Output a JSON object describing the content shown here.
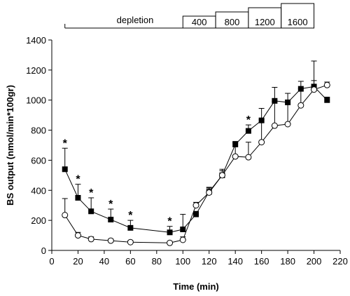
{
  "chart_data": {
    "type": "line",
    "xlabel": "Time (min)",
    "ylabel": "BS output (nmol/min*100gr)",
    "xlim": [
      0,
      220
    ],
    "ylim": [
      0,
      1400
    ],
    "xticks": [
      0,
      20,
      40,
      60,
      80,
      100,
      120,
      140,
      160,
      180,
      200,
      220
    ],
    "yticks": [
      0,
      200,
      400,
      600,
      800,
      1000,
      1200,
      1400
    ],
    "grid": false,
    "phases": [
      {
        "label": "depletion",
        "start": 10,
        "end": 100
      },
      {
        "label": "400",
        "start": 100,
        "end": 125
      },
      {
        "label": "800",
        "start": 125,
        "end": 150
      },
      {
        "label": "1200",
        "start": 150,
        "end": 175
      },
      {
        "label": "1600",
        "start": 175,
        "end": 200
      }
    ],
    "series": [
      {
        "marker": "filled-square",
        "color": "#000000",
        "x": [
          10,
          20,
          30,
          45,
          60,
          90,
          100,
          110,
          120,
          130,
          140,
          150,
          160,
          170,
          180,
          190,
          200,
          210
        ],
        "y": [
          540,
          350,
          260,
          205,
          150,
          120,
          140,
          240,
          390,
          500,
          705,
          795,
          865,
          995,
          985,
          1075,
          1090,
          1000
        ],
        "err": [
          140,
          90,
          90,
          70,
          50,
          40,
          100,
          20,
          30,
          40,
          10,
          40,
          80,
          90,
          60,
          50,
          170,
          20
        ]
      },
      {
        "marker": "open-circle",
        "color": "#000000",
        "x": [
          10,
          20,
          30,
          45,
          60,
          90,
          100,
          110,
          120,
          130,
          140,
          150,
          160,
          170,
          180,
          190,
          200,
          210
        ],
        "y": [
          235,
          100,
          75,
          65,
          55,
          50,
          70,
          300,
          385,
          500,
          625,
          620,
          720,
          830,
          840,
          965,
          1070,
          1100
        ],
        "err": [
          110,
          20,
          15,
          10,
          10,
          10,
          20,
          20,
          30,
          30,
          100,
          100,
          150,
          160,
          160,
          110,
          60,
          20
        ]
      }
    ],
    "significance_markers": [
      {
        "x": 10,
        "y": 680,
        "label": "*"
      },
      {
        "x": 20,
        "y": 440,
        "label": "*"
      },
      {
        "x": 30,
        "y": 350,
        "label": "*"
      },
      {
        "x": 45,
        "y": 275,
        "label": "*"
      },
      {
        "x": 60,
        "y": 200,
        "label": "*"
      },
      {
        "x": 90,
        "y": 160,
        "label": "*"
      },
      {
        "x": 150,
        "y": 835,
        "label": "*"
      }
    ]
  }
}
